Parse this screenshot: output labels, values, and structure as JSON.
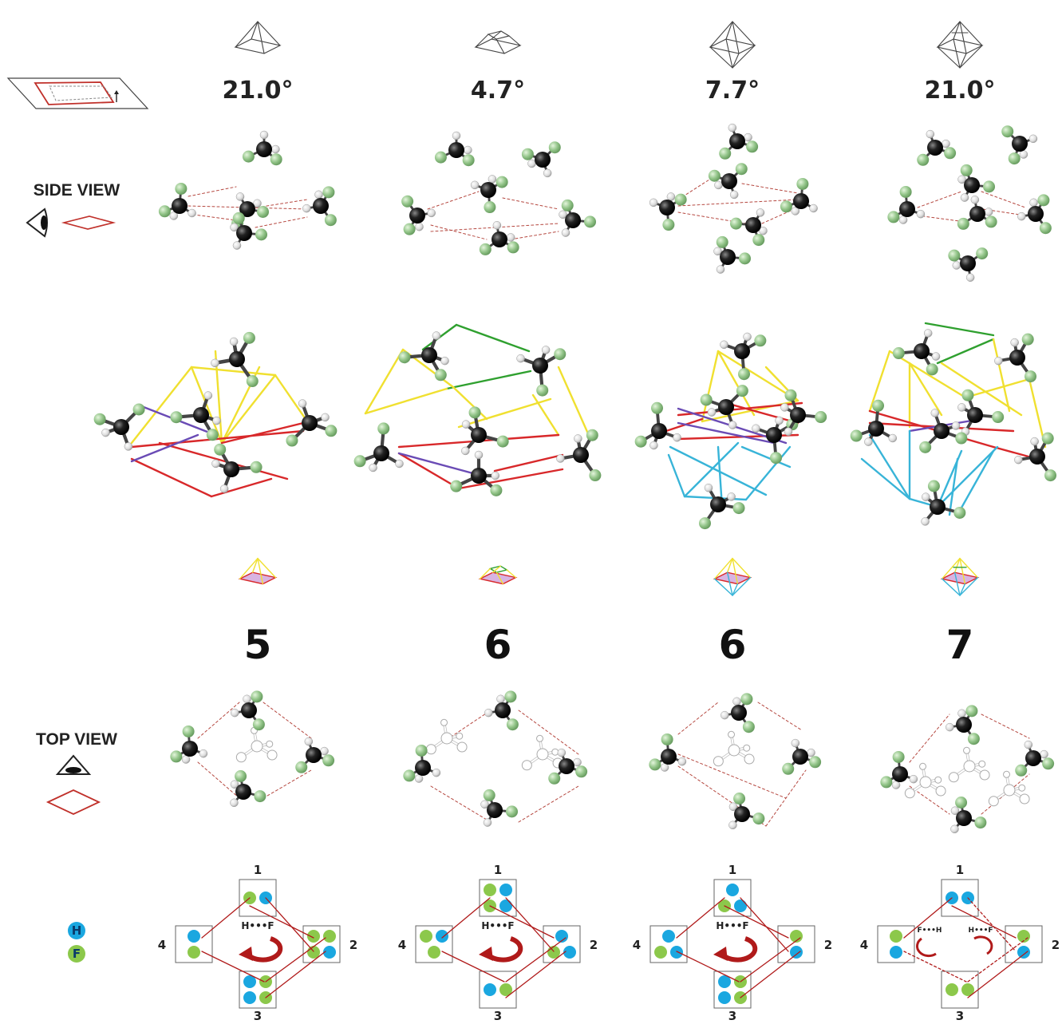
{
  "row_labels": {
    "side_view": "SIDE VIEW",
    "top_view": "TOP VIEW"
  },
  "legend": {
    "h_label": "H",
    "f_label": "F",
    "h_color": "#1aa7e0",
    "f_color": "#8cc84b"
  },
  "colors": {
    "hbond_dashed": "#b5473f",
    "yellow": "#f0e030",
    "green": "#2fa02f",
    "red": "#d8282a",
    "purple": "#6a4bb5",
    "cyan": "#38b4d8",
    "arrow": "#b01a1a",
    "base_fill": "#d8b4e2"
  },
  "columns": [
    {
      "shape": "square-pyramid",
      "angle": "21.0°",
      "count": "5",
      "boxes": {
        "top": "1",
        "right": "2",
        "bottom": "3",
        "left": "4"
      },
      "rotation_label": "H•••F",
      "rotation_label_2": ""
    },
    {
      "shape": "frustum",
      "angle": "4.7°",
      "count": "6",
      "boxes": {
        "top": "1",
        "right": "2",
        "bottom": "3",
        "left": "4"
      },
      "rotation_label": "H•••F",
      "rotation_label_2": ""
    },
    {
      "shape": "octahedron",
      "angle": "7.7°",
      "count": "6",
      "boxes": {
        "top": "1",
        "right": "2",
        "bottom": "3",
        "left": "4"
      },
      "rotation_label": "H•••F",
      "rotation_label_2": ""
    },
    {
      "shape": "capped-bipyramid",
      "angle": "21.0°",
      "count": "7",
      "boxes": {
        "top": "1",
        "right": "2",
        "bottom": "3",
        "left": "4"
      },
      "rotation_label": "F•••H",
      "rotation_label_2": "H•••F"
    }
  ]
}
